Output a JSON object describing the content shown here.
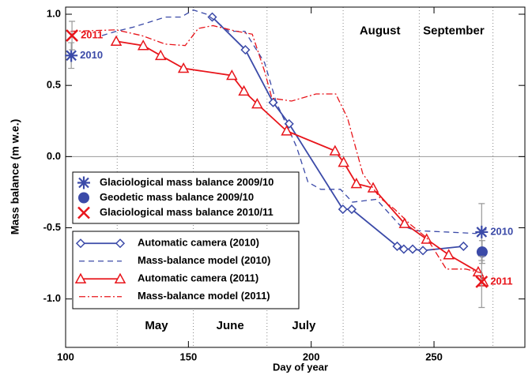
{
  "chart_data": {
    "type": "line",
    "xlabel": "Day of year",
    "ylabel": "Mass balance (m w.e.)",
    "xlim": [
      100,
      287
    ],
    "ylim": [
      -1.34,
      1.05
    ],
    "xticks": [
      100,
      150,
      200,
      250
    ],
    "yticks": [
      {
        "value": -1.0,
        "label": "-1.0"
      },
      {
        "value": -0.5,
        "label": "-0.5"
      },
      {
        "value": 0.0,
        "label": "0.0"
      },
      {
        "value": 0.5,
        "label": "0.5"
      },
      {
        "value": 1.0,
        "label": "1.0"
      }
    ],
    "month_lines": [
      121,
      152,
      182,
      213,
      244,
      274
    ],
    "annotations": [
      {
        "text": "May",
        "x": 137,
        "y": -1.19
      },
      {
        "text": "June",
        "x": 167,
        "y": -1.19
      },
      {
        "text": "July",
        "x": 197,
        "y": -1.19
      },
      {
        "text": "August",
        "x": 228,
        "y": 0.88
      },
      {
        "text": "September",
        "x": 258,
        "y": 0.88
      }
    ],
    "series": [
      {
        "name": "Glaciological mass balance 2009/10",
        "color": "#3b4aa8",
        "kind": "scatter",
        "marker": "asterisk",
        "x": [
          102.3,
          269.4
        ],
        "values": [
          0.71,
          -0.53
        ],
        "errors": [
          0.09,
          0.2
        ],
        "point_labels": [
          "2010",
          "2010"
        ]
      },
      {
        "name": "Geodetic mass balance 2009/10",
        "color": "#3b4aa8",
        "kind": "scatter",
        "marker": "circle",
        "x": [
          269.6
        ],
        "values": [
          -0.67
        ],
        "errors": [
          0.08
        ]
      },
      {
        "name": "Glaciological mass balance 2010/11",
        "color": "#e8151b",
        "kind": "scatter",
        "marker": "x",
        "x": [
          102.6,
          269.4
        ],
        "values": [
          0.85,
          -0.88
        ],
        "errors": [
          0.1,
          0.18
        ],
        "point_labels": [
          "2011",
          "2011"
        ]
      },
      {
        "name": "Automatic camera (2010)",
        "color": "#3b4aa8",
        "kind": "line",
        "marker": "diamond",
        "dash": "solid",
        "x": [
          159.7,
          173.2,
          184.5,
          191,
          212.9,
          216.5,
          235,
          237.7,
          241.3,
          245.5,
          262
        ],
        "values": [
          0.98,
          0.75,
          0.38,
          0.23,
          -0.37,
          -0.37,
          -0.63,
          -0.65,
          -0.65,
          -0.66,
          -0.63
        ]
      },
      {
        "name": "Mass-balance model (2010)",
        "color": "#3b4aa8",
        "kind": "line",
        "dash": "dashed",
        "x": [
          114.8,
          120.6,
          127.7,
          140.6,
          147,
          152,
          157.4,
          166.5,
          173,
          181,
          185.8,
          194,
          198.7,
          203.9,
          211.9,
          216.8,
          226.5,
          236,
          242.6,
          255.5,
          266.8,
          271.7
        ],
        "values": [
          0.85,
          0.88,
          0.91,
          0.98,
          0.98,
          1.03,
          1.0,
          0.88,
          0.88,
          0.66,
          0.38,
          0.07,
          -0.18,
          -0.23,
          -0.23,
          -0.32,
          -0.3,
          -0.48,
          -0.52,
          -0.53,
          -0.54,
          -0.51
        ]
      },
      {
        "name": "Automatic camera (2011)",
        "color": "#e8151b",
        "kind": "line",
        "marker": "triangle",
        "dash": "solid",
        "x": [
          120.6,
          131.6,
          138.7,
          148,
          167.7,
          172.6,
          178,
          190,
          209.7,
          213.2,
          218.4,
          225.2,
          238,
          247,
          256,
          268,
          270
        ],
        "values": [
          0.81,
          0.78,
          0.71,
          0.62,
          0.57,
          0.46,
          0.37,
          0.18,
          0.04,
          -0.04,
          -0.19,
          -0.22,
          -0.47,
          -0.58,
          -0.69,
          -0.81,
          -0.88
        ]
      },
      {
        "name": "Mass-balance model (2011)",
        "color": "#e8151b",
        "kind": "line",
        "dash": "dashdot",
        "x": [
          102,
          120.6,
          131,
          140.6,
          148.7,
          154,
          160,
          169.7,
          176,
          181,
          184,
          192,
          202,
          210,
          214.8,
          221,
          228,
          234,
          240.6,
          247,
          255,
          263,
          270
        ],
        "values": [
          0.88,
          0.89,
          0.85,
          0.79,
          0.78,
          0.9,
          0.92,
          0.88,
          0.86,
          0.6,
          0.41,
          0.39,
          0.44,
          0.44,
          0.27,
          -0.12,
          -0.29,
          -0.37,
          -0.48,
          -0.57,
          -0.79,
          -0.79,
          -0.82
        ]
      }
    ]
  }
}
